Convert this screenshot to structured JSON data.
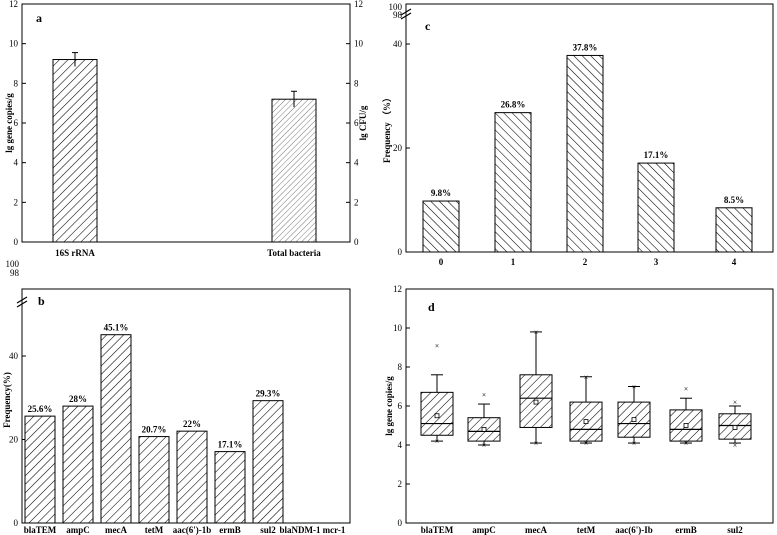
{
  "chart_data": [
    {
      "id": "a",
      "type": "bar",
      "panel_label": "a",
      "categories": [
        "16S rRNA",
        "Total bacteria"
      ],
      "values": [
        9.2,
        7.2
      ],
      "errors": [
        0.35,
        0.4
      ],
      "ylabel": "lg gene copies/g",
      "ylabel_right": "lg CFU/g",
      "ylim": [
        0,
        12
      ],
      "yticks": [
        "0",
        "2",
        "4",
        "6",
        "8",
        "10",
        "12"
      ]
    },
    {
      "id": "b",
      "type": "bar",
      "panel_label": "b",
      "categories": [
        "blaTEM",
        "ampC",
        "mecA",
        "tetM",
        "aac(6')-1b",
        "ermB",
        "sul2",
        "blaNDM-1",
        "mcr-1"
      ],
      "values": [
        25.6,
        28,
        45.1,
        20.7,
        22,
        17.1,
        29.3,
        0,
        0
      ],
      "value_labels": [
        "25.6%",
        "28%",
        "45.1%",
        "20.7%",
        "22%",
        "17.1%",
        "29.3%",
        "",
        ""
      ],
      "ylabel": "Frequency(%)",
      "ylim": [
        0,
        50
      ],
      "yticks_lower": [
        "0",
        "20",
        "40"
      ],
      "yticks_upper": [
        "98",
        "100"
      ]
    },
    {
      "id": "c",
      "type": "bar",
      "panel_label": "c",
      "categories": [
        "0",
        "1",
        "2",
        "3",
        "4"
      ],
      "values": [
        9.8,
        26.8,
        37.8,
        17.1,
        8.5
      ],
      "value_labels": [
        "9.8%",
        "26.8%",
        "37.8%",
        "17.1%",
        "8.5%"
      ],
      "ylabel": "Frequency （%）",
      "ylim": [
        0,
        40
      ],
      "yticks_lower": [
        "0",
        "20",
        "40"
      ],
      "yticks_upper": [
        "98",
        "100"
      ]
    },
    {
      "id": "d",
      "type": "box",
      "panel_label": "d",
      "categories": [
        "blaTEM",
        "ampC",
        "mecA",
        "tetM",
        "aac(6')-Ib",
        "ermB",
        "sul2"
      ],
      "boxes": [
        {
          "min": 4.2,
          "q1": 4.5,
          "median": 5.1,
          "q3": 6.7,
          "max": 7.6,
          "mean": 5.5,
          "outliers": [
            9.1,
            4.2
          ]
        },
        {
          "min": 4.0,
          "q1": 4.2,
          "median": 4.7,
          "q3": 5.4,
          "max": 6.1,
          "mean": 4.8,
          "outliers": [
            6.6,
            4.0
          ]
        },
        {
          "min": 4.1,
          "q1": 4.9,
          "median": 6.4,
          "q3": 7.6,
          "max": 9.8,
          "mean": 6.2,
          "outliers": [
            9.8,
            4.1
          ]
        },
        {
          "min": 4.1,
          "q1": 4.2,
          "median": 4.8,
          "q3": 6.2,
          "max": 7.5,
          "mean": 5.2,
          "outliers": [
            7.5,
            4.1
          ]
        },
        {
          "min": 4.1,
          "q1": 4.4,
          "median": 5.1,
          "q3": 6.2,
          "max": 7.0,
          "mean": 5.3,
          "outliers": [
            7.0,
            4.1
          ]
        },
        {
          "min": 4.1,
          "q1": 4.2,
          "median": 4.8,
          "q3": 5.8,
          "max": 6.4,
          "mean": 5.0,
          "outliers": [
            6.9,
            4.1
          ]
        },
        {
          "min": 4.1,
          "q1": 4.3,
          "median": 5.0,
          "q3": 5.6,
          "max": 6.0,
          "mean": 4.9,
          "outliers": [
            6.2,
            4.0
          ]
        }
      ],
      "ylabel": "lg gene copies/g",
      "ylim": [
        0,
        12
      ],
      "yticks": [
        "0",
        "2",
        "4",
        "6",
        "8",
        "10",
        "12"
      ]
    }
  ]
}
